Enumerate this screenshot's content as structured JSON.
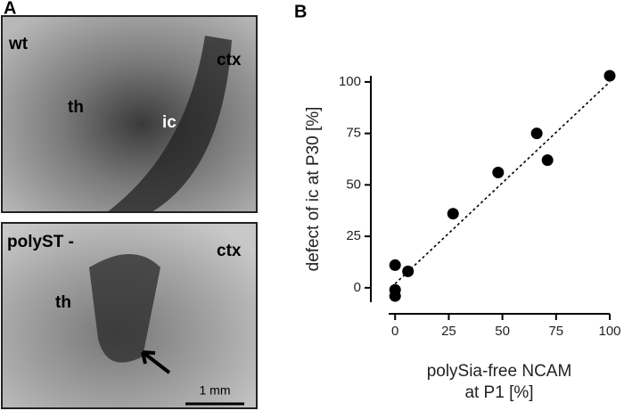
{
  "panel_labels": [
    "A",
    "B"
  ],
  "image_top": {
    "labels": [
      "wt",
      "ctx",
      "th",
      "ic"
    ]
  },
  "image_bottom": {
    "labels": [
      "polyST -",
      "ctx",
      "th"
    ],
    "scale_bar": "1 mm"
  },
  "chart_data": {
    "type": "scatter",
    "x_label": [
      "polySia-free NCAM",
      "at P1 [%]"
    ],
    "y_label": "defect of ic at P30 [%]",
    "series": [
      {
        "color": "#000000",
        "x": [
          0,
          0,
          0,
          6,
          27,
          48,
          66,
          71,
          100
        ],
        "values": [
          11,
          -1,
          -4,
          8,
          36,
          56,
          75,
          62,
          103
        ]
      }
    ],
    "trend_line": {
      "x": [
        0,
        100
      ],
      "y": [
        2,
        100
      ]
    },
    "xlim": [
      -3,
      100
    ],
    "xticks": [
      0,
      25,
      50,
      75,
      100
    ],
    "ylim": [
      -7,
      103
    ],
    "yticks": [
      0,
      25,
      50,
      75,
      100
    ]
  }
}
